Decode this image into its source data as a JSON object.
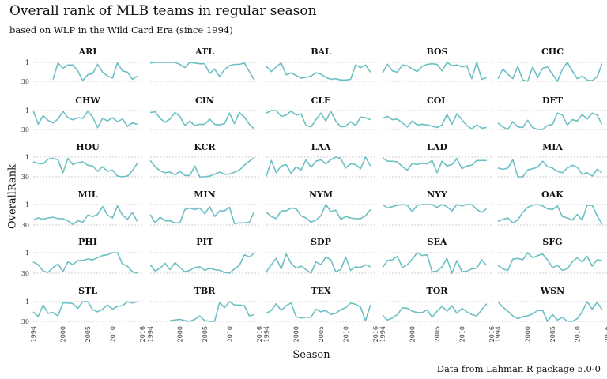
{
  "title": "Overall rank of MLB teams in regular season",
  "subtitle": "based on WLP in the Wild Card Era (since 1994)",
  "caption": "Data from Lahman R package 5.0-0",
  "colors": {
    "line": "#6cbfc3",
    "grid": "#bdbdbd"
  },
  "chart_data": {
    "type": "line",
    "facet": "small-multiples",
    "xlabel": "Season",
    "ylabel": "OverallRank",
    "xlim": [
      1994,
      2016
    ],
    "ylim": [
      30,
      1
    ],
    "y_reversed": true,
    "x_ticks": [
      1994,
      2000,
      2005,
      2010,
      2016
    ],
    "y_ticks": [
      1,
      30
    ],
    "grid": true,
    "legend": "none",
    "x": [
      1994,
      1995,
      1996,
      1997,
      1998,
      1999,
      2000,
      2001,
      2002,
      2003,
      2004,
      2005,
      2006,
      2007,
      2008,
      2009,
      2010,
      2011,
      2012,
      2013,
      2014,
      2015
    ],
    "series": [
      {
        "name": "ARI",
        "values": [
          null,
          null,
          null,
          null,
          27,
          2,
          10,
          5,
          5,
          14,
          29,
          20,
          18,
          4,
          16,
          22,
          25,
          2,
          14,
          16,
          27,
          22
        ]
      },
      {
        "name": "ATL",
        "values": [
          2,
          1,
          1,
          1,
          1,
          1,
          4,
          9,
          1,
          2,
          3,
          3,
          18,
          11,
          23,
          12,
          6,
          4,
          4,
          2,
          15,
          28
        ]
      },
      {
        "name": "BAL",
        "values": [
          7,
          15,
          8,
          2,
          20,
          17,
          21,
          25,
          24,
          22,
          17,
          19,
          24,
          27,
          26,
          28,
          28,
          27,
          5,
          9,
          5,
          16
        ]
      },
      {
        "name": "BOS",
        "values": [
          17,
          4,
          14,
          16,
          5,
          6,
          11,
          15,
          7,
          4,
          3,
          4,
          14,
          1,
          6,
          5,
          8,
          6,
          26,
          1,
          27,
          24
        ]
      },
      {
        "name": "CHC",
        "values": [
          26,
          11,
          19,
          26,
          7,
          28,
          30,
          8,
          24,
          10,
          8,
          19,
          30,
          12,
          1,
          14,
          26,
          22,
          28,
          29,
          23,
          3
        ]
      },
      {
        "name": "CHW",
        "values": [
          1,
          22,
          9,
          16,
          20,
          14,
          2,
          12,
          15,
          12,
          13,
          2,
          11,
          27,
          13,
          17,
          12,
          18,
          14,
          25,
          20,
          22
        ]
      },
      {
        "name": "CIN",
        "values": [
          4,
          3,
          13,
          19,
          14,
          4,
          10,
          24,
          17,
          24,
          22,
          22,
          14,
          22,
          23,
          21,
          5,
          21,
          4,
          11,
          22,
          29
        ]
      },
      {
        "name": "CLE",
        "values": [
          5,
          1,
          1,
          10,
          8,
          2,
          8,
          6,
          24,
          26,
          15,
          5,
          17,
          2,
          17,
          26,
          25,
          18,
          24,
          11,
          12,
          15
        ]
      },
      {
        "name": "COL",
        "values": [
          13,
          10,
          15,
          14,
          20,
          26,
          17,
          23,
          22,
          23,
          25,
          27,
          23,
          7,
          22,
          6,
          15,
          24,
          29,
          23,
          28,
          27
        ]
      },
      {
        "name": "DET",
        "values": [
          20,
          26,
          30,
          18,
          26,
          27,
          16,
          27,
          30,
          30,
          24,
          22,
          5,
          8,
          23,
          15,
          17,
          7,
          14,
          5,
          8,
          22
        ]
      },
      {
        "name": "HOU",
        "values": [
          8,
          10,
          11,
          4,
          3,
          5,
          24,
          3,
          12,
          9,
          8,
          13,
          14,
          22,
          15,
          22,
          20,
          29,
          30,
          29,
          21,
          10
        ]
      },
      {
        "name": "KCR",
        "values": [
          6,
          15,
          21,
          24,
          23,
          27,
          22,
          28,
          28,
          14,
          30,
          30,
          29,
          26,
          23,
          26,
          26,
          23,
          20,
          13,
          7,
          2
        ]
      },
      {
        "name": "LAA",
        "values": [
          29,
          6,
          24,
          14,
          12,
          25,
          15,
          20,
          5,
          16,
          7,
          5,
          11,
          5,
          1,
          3,
          17,
          11,
          12,
          18,
          1,
          14
        ]
      },
      {
        "name": "LAD",
        "values": [
          2,
          7,
          7,
          8,
          15,
          20,
          10,
          12,
          10,
          11,
          6,
          24,
          7,
          14,
          12,
          3,
          18,
          14,
          13,
          6,
          6,
          6
        ]
      },
      {
        "name": "MIA",
        "values": [
          17,
          19,
          17,
          5,
          30,
          30,
          20,
          18,
          16,
          7,
          15,
          17,
          22,
          24,
          17,
          13,
          16,
          26,
          24,
          29,
          19,
          24
        ]
      },
      {
        "name": "MIL",
        "values": [
          23,
          20,
          22,
          20,
          19,
          21,
          21,
          24,
          29,
          24,
          26,
          16,
          18,
          15,
          4,
          16,
          20,
          3,
          16,
          22,
          12,
          25
        ]
      },
      {
        "name": "MIN",
        "values": [
          15,
          27,
          19,
          24,
          24,
          27,
          27,
          8,
          6,
          8,
          6,
          14,
          4,
          18,
          10,
          10,
          5,
          28,
          27,
          27,
          26,
          11
        ]
      },
      {
        "name": "NYM",
        "values": [
          12,
          18,
          21,
          10,
          10,
          6,
          7,
          17,
          20,
          26,
          23,
          17,
          1,
          11,
          9,
          22,
          18,
          20,
          21,
          21,
          17,
          8
        ]
      },
      {
        "name": "NYY",
        "values": [
          1,
          6,
          4,
          2,
          1,
          2,
          11,
          2,
          1,
          1,
          1,
          5,
          1,
          4,
          10,
          1,
          3,
          1,
          1,
          8,
          12,
          7
        ]
      },
      {
        "name": "OAK",
        "values": [
          25,
          22,
          20,
          27,
          23,
          12,
          5,
          2,
          1,
          3,
          7,
          8,
          3,
          18,
          20,
          23,
          15,
          23,
          2,
          2,
          17,
          29
        ]
      },
      {
        "name": "PHI",
        "values": [
          14,
          18,
          27,
          29,
          22,
          17,
          28,
          14,
          18,
          12,
          12,
          10,
          11,
          8,
          5,
          4,
          1,
          1,
          17,
          20,
          28,
          30
        ]
      },
      {
        "name": "PIT",
        "values": [
          18,
          27,
          23,
          16,
          25,
          15,
          22,
          28,
          26,
          22,
          21,
          26,
          23,
          25,
          26,
          29,
          30,
          24,
          19,
          4,
          7,
          2
        ]
      },
      {
        "name": "SDP",
        "values": [
          28,
          18,
          9,
          24,
          3,
          16,
          23,
          20,
          25,
          30,
          14,
          18,
          7,
          11,
          28,
          25,
          7,
          26,
          21,
          22,
          18,
          21
        ]
      },
      {
        "name": "SEA",
        "values": [
          22,
          12,
          11,
          6,
          22,
          18,
          10,
          1,
          5,
          4,
          28,
          27,
          21,
          9,
          30,
          12,
          28,
          27,
          24,
          23,
          11,
          19
        ]
      },
      {
        "name": "SFG",
        "values": [
          19,
          24,
          26,
          10,
          9,
          11,
          1,
          8,
          5,
          3,
          11,
          22,
          19,
          26,
          24,
          14,
          8,
          14,
          6,
          20,
          11,
          12
        ]
      },
      {
        "name": "STL",
        "values": [
          16,
          23,
          6,
          18,
          17,
          22,
          3,
          3,
          4,
          11,
          1,
          1,
          13,
          16,
          12,
          6,
          12,
          8,
          7,
          1,
          3,
          1
        ]
      },
      {
        "name": "TBR",
        "values": [
          null,
          null,
          null,
          null,
          29,
          28,
          27,
          29,
          30,
          27,
          22,
          29,
          30,
          30,
          2,
          10,
          1,
          6,
          6,
          7,
          22,
          20
        ]
      },
      {
        "name": "TEX",
        "values": [
          18,
          14,
          4,
          14,
          7,
          3,
          23,
          25,
          24,
          24,
          12,
          16,
          14,
          20,
          18,
          13,
          10,
          3,
          5,
          9,
          29,
          6
        ]
      },
      {
        "name": "TOR",
        "values": [
          21,
          28,
          25,
          20,
          10,
          11,
          15,
          17,
          17,
          13,
          24,
          15,
          8,
          15,
          7,
          18,
          11,
          16,
          20,
          22,
          13,
          4
        ]
      },
      {
        "name": "WSN",
        "values": [
          1,
          9,
          15,
          22,
          26,
          23,
          22,
          19,
          14,
          14,
          30,
          20,
          28,
          24,
          30,
          30,
          26,
          16,
          1,
          12,
          2,
          13
        ]
      }
    ]
  }
}
